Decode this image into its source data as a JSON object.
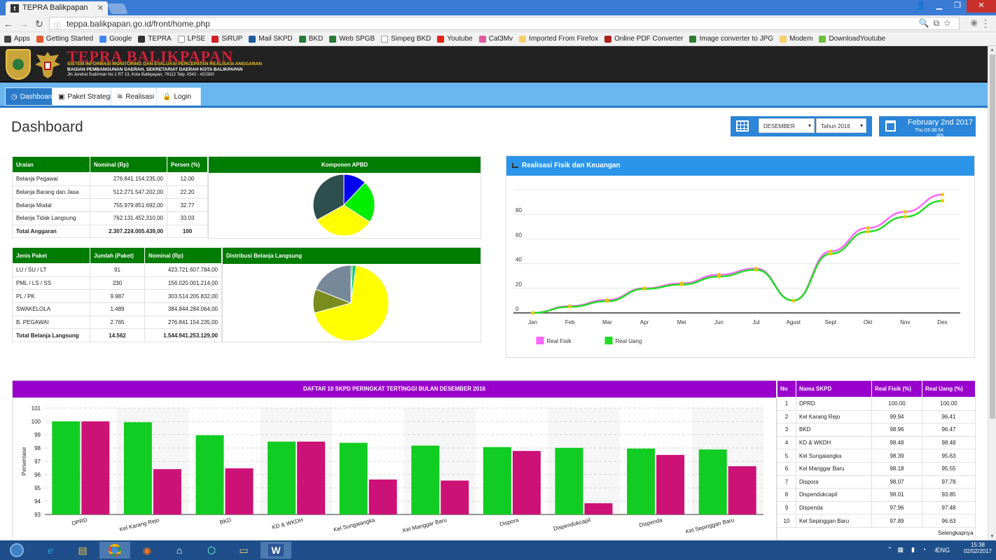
{
  "browser": {
    "tab_title": "TEPRA Balikpapan",
    "url": "teppa.balikpapan.go.id/front/home.php",
    "bookmarks": [
      {
        "label": "Apps",
        "color": "#444"
      },
      {
        "label": "Getting Started",
        "color": "#e2572d"
      },
      {
        "label": "Google",
        "color": "#4285f4"
      },
      {
        "label": "TEPRA",
        "color": "#333"
      },
      {
        "label": "LPSE",
        "color": "#fff"
      },
      {
        "label": "SiRUP",
        "color": "#d0202a"
      },
      {
        "label": "Mail SKPD",
        "color": "#1e5a9a"
      },
      {
        "label": "BKD",
        "color": "#2a7a3a"
      },
      {
        "label": "Web SPGB",
        "color": "#2a7a3a"
      },
      {
        "label": "Simpeg BKD",
        "color": "#fff"
      },
      {
        "label": "Youtube",
        "color": "#e62117"
      },
      {
        "label": "Cat3Mv",
        "color": "#e05aa0"
      },
      {
        "label": "Imported From Firefox",
        "color": "#f5d06a"
      },
      {
        "label": "Online PDF Converter",
        "color": "#b01e1e"
      },
      {
        "label": "Image converter to JPG",
        "color": "#2e7d32"
      },
      {
        "label": "Modem",
        "color": "#f5d06a"
      },
      {
        "label": "DownloadYoutube",
        "color": "#6cbf3a"
      }
    ]
  },
  "header": {
    "title": "TEPRA BALIKPAPAN",
    "subtitle": "SISTEM INFORMASI MONITORING DAN EVALUASI PERCEPATAN REALISASI ANGGARAN",
    "dept": "BAGIAN PEMBANGUNAN DAERAH, SEKRETARIAT DAERAH KOTA BALIKPAPAN",
    "address": "Jln Jendral Sudirman No 1 RT 13, Kota Balikpapan, 76112 Telp. 0542 - 421500"
  },
  "nav": {
    "tabs": [
      "Dashboard",
      "Paket Strategis",
      "Realisasi",
      "Login"
    ]
  },
  "page": {
    "title": "Dashboard",
    "month_select": "DESEMBER",
    "year_select": "Tahun 2016",
    "date": "February 2nd 2017",
    "time": "Thu 03:38:54 pm"
  },
  "apbd": {
    "headers": [
      "Uraian",
      "Nominal (Rp)",
      "Persen (%)"
    ],
    "chart_title": "Komponen APBD",
    "rows": [
      {
        "label": "Belanja Pegawai",
        "nominal": "276.841.154.235,00",
        "pct": "12.00"
      },
      {
        "label": "Belanja Barang dan Jasa",
        "nominal": "512.271.547.202,00",
        "pct": "22.20"
      },
      {
        "label": "Belanja Modal",
        "nominal": "755.979.851.692,00",
        "pct": "32.77"
      },
      {
        "label": "Belanja Tidak Langsung",
        "nominal": "762.131.452.310,00",
        "pct": "33.03"
      }
    ],
    "total": {
      "label": "Total Anggaran",
      "nominal": "2.307.224.005.439,00",
      "pct": "100"
    }
  },
  "paket": {
    "headers": [
      "Jenis Paket",
      "Jumlah (Paket)",
      "Nominal (Rp)"
    ],
    "chart_title": "Distribusi Belanja Langsung",
    "rows": [
      {
        "label": "LU / SU / LT",
        "jumlah": "91",
        "nominal": "423.721.607.784,00"
      },
      {
        "label": "PML / LS / SS",
        "jumlah": "230",
        "nominal": "156.020.001.214,00"
      },
      {
        "label": "PL / PK",
        "jumlah": "9.987",
        "nominal": "303.514.205.832,00"
      },
      {
        "label": "SWAKELOLA",
        "jumlah": "1.489",
        "nominal": "384.844.284.064,00"
      },
      {
        "label": "B. PEGAWAI",
        "jumlah": "2.765",
        "nominal": "276.841.154.235,00"
      }
    ],
    "total": {
      "label": "Total Belanja Langsung",
      "jumlah": "14.562",
      "nominal": "1.544.941.253.129,00"
    }
  },
  "realisasi_panel": {
    "title": "Realisasi Fisik dan Keuangan"
  },
  "ranking_panel": {
    "title": "DAFTAR 10 SKPD PERINGKAT TERTINGGI BULAN DESEMBER 2016",
    "headers": [
      "No",
      "Nama SKPD",
      "Real Fisik (%)",
      "Real Uang (%)"
    ],
    "rows": [
      {
        "no": "1",
        "nama": "DPRD",
        "fisik": "100.00",
        "uang": "100.00"
      },
      {
        "no": "2",
        "nama": "Kel Karang Rejo",
        "fisik": "99.94",
        "uang": "96.41"
      },
      {
        "no": "3",
        "nama": "BKD",
        "fisik": "98.96",
        "uang": "96.47"
      },
      {
        "no": "4",
        "nama": "KD & WKDH",
        "fisik": "98.48",
        "uang": "98.48"
      },
      {
        "no": "5",
        "nama": "Kel Sungaiangka",
        "fisik": "98.39",
        "uang": "95.63"
      },
      {
        "no": "6",
        "nama": "Kel Manggar Baru",
        "fisik": "98.18",
        "uang": "95.55"
      },
      {
        "no": "7",
        "nama": "Dispora",
        "fisik": "98.07",
        "uang": "97.78"
      },
      {
        "no": "8",
        "nama": "Dispendukcapil",
        "fisik": "98.01",
        "uang": "93.85"
      },
      {
        "no": "9",
        "nama": "Dispenda",
        "fisik": "97.96",
        "uang": "97.48"
      },
      {
        "no": "10",
        "nama": "Kel Sepinggan Baru",
        "fisik": "97.89",
        "uang": "96.63"
      }
    ],
    "more": "Selengkapnya"
  },
  "taskbar": {
    "time": "15:38",
    "date": "02/02/2017",
    "lang": "ENG"
  },
  "chart_data": [
    {
      "type": "pie",
      "title": "Komponen APBD",
      "categories": [
        "Belanja Pegawai",
        "Belanja Barang dan Jasa",
        "Belanja Modal",
        "Belanja Tidak Langsung"
      ],
      "values": [
        12.0,
        22.2,
        32.77,
        33.03
      ],
      "colors": [
        "#0000ee",
        "#00ee00",
        "#ffff00",
        "#2f4f4f"
      ]
    },
    {
      "type": "pie",
      "title": "Distribusi Belanja Langsung",
      "categories": [
        "LU / SU / LT",
        "PML / LS / SS",
        "PL / PK",
        "SWAKELOLA",
        "B. PEGAWAI"
      ],
      "values": [
        91,
        230,
        9987,
        1489,
        2765
      ],
      "colors": [
        "#00aa00",
        "#00cc66",
        "#ffff00",
        "#7a8c1e",
        "#778899"
      ]
    },
    {
      "type": "line",
      "title": "Realisasi Fisik dan Keuangan",
      "categories": [
        "Jan",
        "Feb",
        "Mar",
        "Apr",
        "Mei",
        "Jun",
        "Jul",
        "Agust",
        "Sept",
        "Okt",
        "Nov",
        "Des"
      ],
      "yticks": [
        0,
        20,
        40,
        60,
        80
      ],
      "ylim": [
        0,
        100
      ],
      "series": [
        {
          "name": "Real Fisik",
          "color": "#ff66ff",
          "values": [
            0,
            5.5,
            10.5,
            20,
            24,
            31,
            36,
            10,
            50,
            69,
            82,
            96
          ]
        },
        {
          "name": "Real Uang",
          "color": "#22dd22",
          "values": [
            0,
            5,
            9.5,
            19.5,
            23,
            29.5,
            35,
            10,
            48,
            66,
            78,
            91
          ]
        }
      ],
      "marker_color": "#e6c800"
    },
    {
      "type": "bar",
      "title": "DAFTAR 10 SKPD PERINGKAT TERTINGGI BULAN DESEMBER 2016",
      "ylabel": "Persentase",
      "ylim": [
        93,
        101
      ],
      "yticks": [
        93,
        94,
        95,
        96,
        97,
        98,
        99,
        100,
        101
      ],
      "categories": [
        "DPRD",
        "Kel Karang Rejo",
        "BKD",
        "KD & WKDH",
        "Kel Sungaiangka",
        "Kel Manggar Baru",
        "Dispora",
        "Dispendukcapil",
        "Dispenda",
        "Kel Sepinggan Baru"
      ],
      "series": [
        {
          "name": "Real Fisik",
          "color": "#11cc22",
          "values": [
            100.0,
            99.94,
            98.96,
            98.48,
            98.39,
            98.18,
            98.07,
            98.01,
            97.96,
            97.89
          ]
        },
        {
          "name": "Real Uang",
          "color": "#cc1177",
          "values": [
            100.0,
            96.41,
            96.47,
            98.48,
            95.63,
            95.55,
            97.78,
            93.85,
            97.48,
            96.63
          ]
        }
      ]
    }
  ]
}
